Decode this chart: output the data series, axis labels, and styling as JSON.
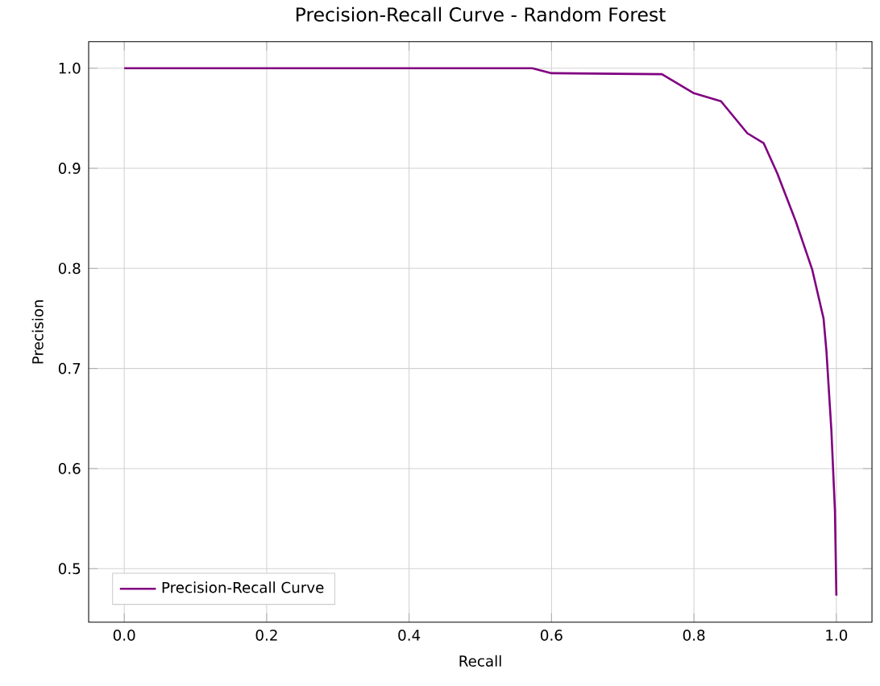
{
  "chart_data": {
    "type": "line",
    "title": "Precision-Recall Curve - Random Forest",
    "xlabel": "Recall",
    "ylabel": "Precision",
    "xlim": [
      -0.05,
      1.05
    ],
    "ylim": [
      0.4465,
      1.0265
    ],
    "xticks": [
      {
        "value": 0,
        "label": "0.0"
      },
      0.2,
      0.4,
      0.6,
      0.8,
      {
        "value": 1,
        "label": "1.0"
      }
    ],
    "yticks": [
      0.5,
      0.6,
      0.7,
      0.8,
      0.9,
      {
        "value": 1,
        "label": "1.0"
      }
    ],
    "grid": true,
    "legend": "bottom left",
    "series": [
      {
        "name": "Precision-Recall Curve",
        "color": "#800080",
        "x": [
          0,
          0.573,
          0.6,
          0.755,
          0.8,
          0.838,
          0.875,
          0.898,
          0.917,
          0.943,
          0.966,
          0.982,
          0.986,
          0.993,
          0.998,
          1.0
        ],
        "values": [
          1.0,
          1.0,
          0.995,
          0.994,
          0.975,
          0.967,
          0.935,
          0.925,
          0.895,
          0.847,
          0.799,
          0.75,
          0.718,
          0.638,
          0.558,
          0.473
        ]
      }
    ]
  }
}
